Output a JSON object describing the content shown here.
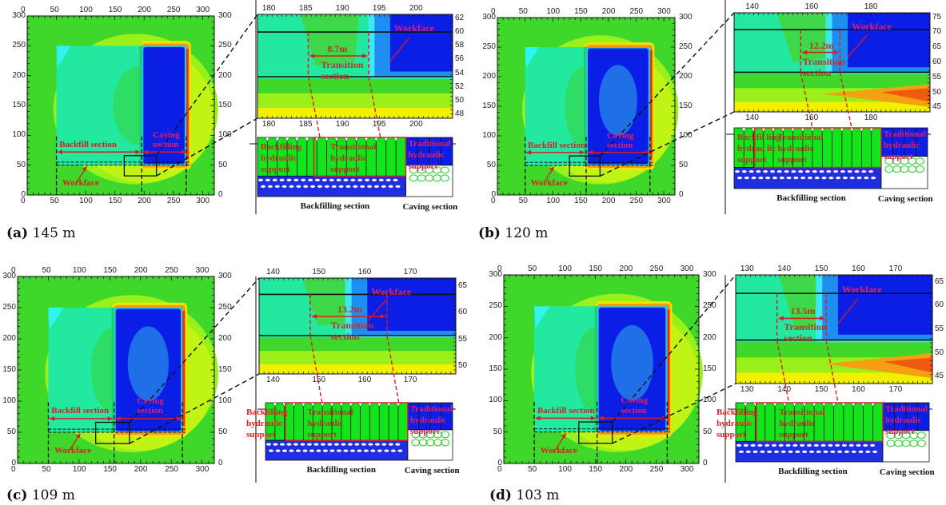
{
  "figure": {
    "panels": [
      {
        "id": "a",
        "caption_letter": "(a)",
        "caption_value": "145 m",
        "overview": {
          "x_ticks": [
            "0",
            "50",
            "100",
            "150",
            "200",
            "250",
            "300"
          ],
          "y_ticks": [
            "0",
            "50",
            "100",
            "150",
            "200",
            "250",
            "300"
          ],
          "backfill_label": "Backfill section",
          "caving_label_1": "Caving",
          "caving_label_2": "section",
          "workface_label": "Workface"
        },
        "zoom": {
          "x_ticks": [
            "180",
            "185",
            "190",
            "195",
            "200"
          ],
          "y_ticks": [
            "48",
            "50",
            "52",
            "54",
            "56",
            "58",
            "60",
            "62"
          ],
          "distance": "8.7m",
          "transition_1": "Transition",
          "transition_2": "section",
          "workface_label": "Workface"
        },
        "schematic": {
          "x_ticks": [
            "180",
            "185",
            "190",
            "195",
            "200"
          ],
          "backfilling_support": [
            "Backfilling",
            "hydraulic",
            "support"
          ],
          "transitional_support": [
            "Transitional",
            "hydraulic",
            "support"
          ],
          "traditional_support": [
            "Traditional",
            "hydraulic",
            "support"
          ],
          "backfilling_section": "Backfilling section",
          "caving_section": "Caving section"
        }
      },
      {
        "id": "b",
        "caption_letter": "(b)",
        "caption_value": "120 m",
        "overview": {
          "x_ticks": [
            "0",
            "50",
            "100",
            "150",
            "200",
            "250",
            "300"
          ],
          "y_ticks": [
            "0",
            "50",
            "100",
            "150",
            "200",
            "250",
            "300"
          ],
          "backfill_label": "Backfill section",
          "caving_label_1": "Caving",
          "caving_label_2": "section",
          "workface_label": "Workface"
        },
        "zoom": {
          "x_ticks": [
            "140",
            "160",
            "180"
          ],
          "y_ticks": [
            "45",
            "50",
            "55",
            "60",
            "65",
            "70",
            "75"
          ],
          "distance": "12.2m",
          "transition_1": "Transition",
          "transition_2": "section",
          "workface_label": "Workface"
        },
        "schematic": {
          "x_ticks": [
            "140",
            "160",
            "180"
          ],
          "backfilling_support": [
            "Backfil ling",
            "hydrau lic",
            "support"
          ],
          "transitional_support": [
            "Transitional",
            "hydraulic",
            "support"
          ],
          "traditional_support": [
            "Traditional",
            "hydraulic",
            "support"
          ],
          "backfilling_section": "Backfilling section",
          "caving_section": "Caving section"
        }
      },
      {
        "id": "c",
        "caption_letter": "(c)",
        "caption_value": "109 m",
        "overview": {
          "x_ticks": [
            "0",
            "50",
            "100",
            "150",
            "200",
            "250",
            "300"
          ],
          "y_ticks": [
            "0",
            "50",
            "100",
            "150",
            "200",
            "250",
            "300"
          ],
          "backfill_label": "Backfill section",
          "caving_label_1": "Caving",
          "caving_label_2": "section",
          "workface_label": "Workface"
        },
        "zoom": {
          "x_ticks": [
            "140",
            "150",
            "160",
            "170"
          ],
          "y_ticks": [
            "50",
            "55",
            "60",
            "65"
          ],
          "distance": "13.2m",
          "transition_1": "Transition",
          "transition_2": "section",
          "workface_label": "Workface"
        },
        "schematic": {
          "x_ticks": [
            "140",
            "150",
            "160",
            "170"
          ],
          "backfilling_support": [
            "Backfilling",
            "hydraulic",
            "support"
          ],
          "transitional_support": [
            "Transitional",
            "hydraulic",
            "support"
          ],
          "traditional_support": [
            "Traditional",
            "hydraulic",
            "support"
          ],
          "backfilling_section": "Backfilling section",
          "caving_section": "Caving section"
        }
      },
      {
        "id": "d",
        "caption_letter": "(d)",
        "caption_value": "103 m",
        "overview": {
          "x_ticks": [
            "0",
            "50",
            "100",
            "150",
            "200",
            "250",
            "300"
          ],
          "y_ticks": [
            "0",
            "50",
            "100",
            "150",
            "200",
            "250",
            "300"
          ],
          "backfill_label": "Backfill section",
          "caving_label_1": "Caving",
          "caving_label_2": "section",
          "workface_label": "Workface"
        },
        "zoom": {
          "x_ticks": [
            "130",
            "140",
            "150",
            "160",
            "170"
          ],
          "y_ticks": [
            "45",
            "50",
            "55",
            "60",
            "65"
          ],
          "distance": "13.5m",
          "transition_1": "Transition",
          "transition_2": "section",
          "workface_label": "Workface"
        },
        "schematic": {
          "x_ticks": [
            "130",
            "140",
            "150",
            "160",
            "170"
          ],
          "backfilling_support": [
            "Backfilling",
            "hydraulic",
            "support"
          ],
          "transitional_support": [
            "Transitional",
            "hydraulic",
            "support"
          ],
          "traditional_support": [
            "Traditional",
            "hydraulic",
            "support"
          ],
          "backfilling_section": "Backfilling section",
          "caving_section": "Caving section"
        }
      }
    ]
  },
  "chart_data": [
    {
      "type": "heatmap",
      "title": "(a) 145 m",
      "xlim": [
        0,
        320
      ],
      "ylim": [
        0,
        300
      ],
      "x_ticks": [
        0,
        50,
        100,
        150,
        200,
        250,
        300
      ],
      "y_ticks": [
        0,
        50,
        100,
        150,
        200,
        250,
        300
      ],
      "regions": {
        "backfill_x": [
          50,
          196
        ],
        "caving_x": [
          196,
          272
        ],
        "panel_y": [
          50,
          250
        ],
        "workface_y": 50
      },
      "annotations": [
        "Backfill section",
        "Caving section",
        "Workface"
      ],
      "zoom": {
        "xlim": [
          178,
          203
        ],
        "ylim": [
          47.5,
          62
        ],
        "transition_x": [
          184,
          193
        ],
        "transition_width_m": 8.7,
        "band_y": [
          53.5,
          59
        ]
      }
    },
    {
      "type": "heatmap",
      "title": "(b) 120 m",
      "xlim": [
        0,
        320
      ],
      "ylim": [
        0,
        300
      ],
      "x_ticks": [
        0,
        50,
        100,
        150,
        200,
        250,
        300
      ],
      "y_ticks": [
        0,
        50,
        100,
        150,
        200,
        250,
        300
      ],
      "regions": {
        "backfill_x": [
          50,
          160
        ],
        "caving_x": [
          160,
          275
        ],
        "panel_y": [
          50,
          250
        ],
        "workface_y": 50
      },
      "annotations": [
        "Backfill section",
        "Caving section",
        "Workface"
      ],
      "zoom": {
        "xlim": [
          135,
          196
        ],
        "ylim": [
          44,
          75
        ],
        "transition_x": [
          155,
          167
        ],
        "transition_width_m": 12.2,
        "band_y": [
          55,
          69
        ]
      }
    },
    {
      "type": "heatmap",
      "title": "(c) 109 m",
      "xlim": [
        0,
        320
      ],
      "ylim": [
        0,
        300
      ],
      "x_ticks": [
        0,
        50,
        100,
        150,
        200,
        250,
        300
      ],
      "y_ticks": [
        0,
        50,
        100,
        150,
        200,
        250,
        300
      ],
      "regions": {
        "backfill_x": [
          50,
          157
        ],
        "caving_x": [
          157,
          268
        ],
        "panel_y": [
          50,
          250
        ],
        "workface_y": 50
      },
      "annotations": [
        "Backfill section",
        "Caving section",
        "Workface"
      ],
      "zoom": {
        "xlim": [
          135,
          170
        ],
        "ylim": [
          47,
          65
        ],
        "transition_x": [
          144,
          157
        ],
        "transition_width_m": 13.2,
        "band_y": [
          52,
          60
        ]
      }
    },
    {
      "type": "heatmap",
      "title": "(d) 103 m",
      "xlim": [
        0,
        320
      ],
      "ylim": [
        0,
        300
      ],
      "x_ticks": [
        0,
        50,
        100,
        150,
        200,
        250,
        300
      ],
      "y_ticks": [
        0,
        50,
        100,
        150,
        200,
        250,
        300
      ],
      "regions": {
        "backfill_x": [
          50,
          153
        ],
        "caving_x": [
          153,
          268
        ],
        "panel_y": [
          50,
          250
        ],
        "workface_y": 50
      },
      "annotations": [
        "Backfill section",
        "Caving section",
        "Workface"
      ],
      "zoom": {
        "xlim": [
          129,
          176
        ],
        "ylim": [
          41,
          66
        ],
        "transition_x": [
          138,
          152
        ],
        "transition_width_m": 13.5,
        "band_y": [
          50,
          61
        ]
      }
    }
  ]
}
